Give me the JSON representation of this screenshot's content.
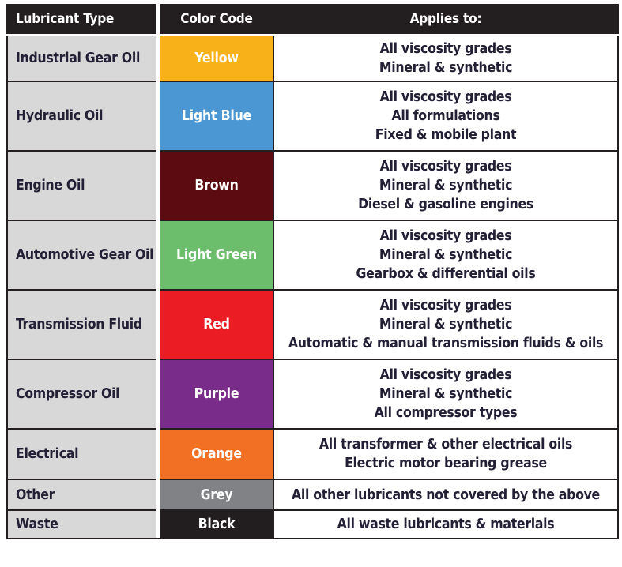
{
  "header": {
    "lubricant_type": "Lubricant Type",
    "color_code": "Color Code",
    "applies_to": "Applies to:"
  },
  "palette": {
    "header_bg": "#231f20",
    "type_column_bg": "#d8d8d8",
    "text_dark": "#232035",
    "label_text": "#ffffff"
  },
  "rows": [
    {
      "type": "Industrial Gear Oil",
      "color_name": "Yellow",
      "color_hex": "#f9b119",
      "applies": [
        "All viscosity grades",
        "Mineral & synthetic"
      ]
    },
    {
      "type": "Hydraulic Oil",
      "color_name": "Light Blue",
      "color_hex": "#4a97d3",
      "applies": [
        "All viscosity grades",
        "All formulations",
        "Fixed & mobile plant"
      ]
    },
    {
      "type": "Engine Oil",
      "color_name": "Brown",
      "color_hex": "#5c0c11",
      "applies": [
        "All viscosity grades",
        "Mineral & synthetic",
        "Diesel & gasoline engines"
      ]
    },
    {
      "type": "Automotive Gear Oil",
      "color_name": "Light Green",
      "color_hex": "#6cbe6d",
      "applies": [
        "All viscosity grades",
        "Mineral & synthetic",
        "Gearbox & differential oils"
      ]
    },
    {
      "type": "Transmission Fluid",
      "color_name": "Red",
      "color_hex": "#ec1c24",
      "applies": [
        "All viscosity grades",
        "Mineral & synthetic",
        "Automatic & manual transmission fluids & oils"
      ]
    },
    {
      "type": "Compressor Oil",
      "color_name": "Purple",
      "color_hex": "#7a2c8b",
      "applies": [
        "All viscosity grades",
        "Mineral & synthetic",
        "All compressor types"
      ]
    },
    {
      "type": "Electrical",
      "color_name": "Orange",
      "color_hex": "#f17024",
      "applies": [
        "All transformer & other electrical oils",
        "Electric motor bearing grease"
      ]
    },
    {
      "type": "Other",
      "color_name": "Grey",
      "color_hex": "#808285",
      "applies": [
        "All other lubricants not covered by the above"
      ]
    },
    {
      "type": "Waste",
      "color_name": "Black",
      "color_hex": "#221e1f",
      "applies": [
        "All waste lubricants & materials"
      ]
    }
  ]
}
